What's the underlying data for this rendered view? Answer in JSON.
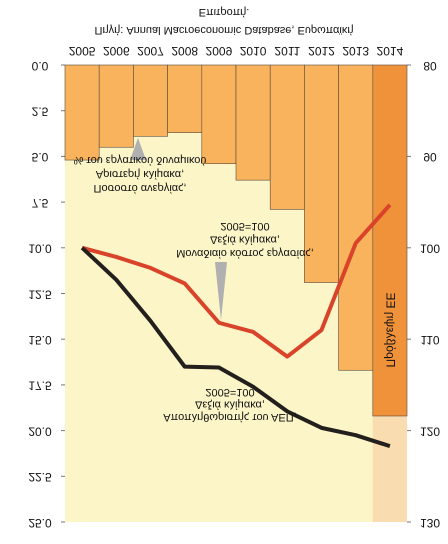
{
  "chart_data": {
    "type": "bar_line",
    "source": [
      "Επιτροπή.",
      "Πηγή: Annual Macroeconomic Database, Ευρωπαϊκή"
    ],
    "categories": [
      "2005",
      "2006",
      "2007",
      "2008",
      "2009",
      "2010",
      "2011",
      "2012",
      "2013",
      "2014"
    ],
    "series": [
      {
        "name": "Ποσοστό ανεργίας",
        "type": "bar",
        "axis": "y",
        "color": "#f8b35c",
        "values": [
          5.2,
          4.5,
          3.9,
          3.7,
          5.4,
          6.3,
          7.9,
          11.9,
          16.7,
          19.2
        ]
      },
      {
        "name": "Μοναδιαίο κόστος εργασίας",
        "type": "line",
        "axis": "y2",
        "color": "#d9432a",
        "values": [
          100,
          101,
          102.2,
          103.9,
          108.2,
          109.2,
          111.9,
          109,
          99.5,
          95.3
        ]
      },
      {
        "name": "Αποπληθωριστής του ΑΕΠ",
        "type": "line",
        "axis": "y2",
        "color": "#231f1c",
        "values": [
          100,
          103.5,
          108,
          113,
          113.1,
          115.2,
          117.9,
          119.7,
          120.5,
          121.7
        ]
      }
    ],
    "forecast_color": "#f0923a",
    "annotations": {
      "unemployment": [
        "Ποσοστό ανεργίας,",
        "Αριστερή κλίμακα,",
        "% του εργατικού δυναμικού"
      ],
      "labor_cost": [
        "Μοναδιαίο κόστος εργασίας,",
        "Δεξιά κλίμακα,",
        "2005=100"
      ],
      "deflator": [
        "Αποπληθωριστής του ΑΕΠ,",
        "Δεξιά κλίμακα,",
        "2005=100"
      ],
      "forecast": "Πρόβλεψη ΕΕ"
    },
    "ylim": [
      0,
      25
    ],
    "yticks": [
      {
        "value": 0,
        "label": "0.0"
      },
      {
        "value": 2.5,
        "label": "2.5"
      },
      {
        "value": 5,
        "label": "5.0"
      },
      {
        "value": 7.5,
        "label": "7.5"
      },
      {
        "value": 10,
        "label": "10.0"
      },
      {
        "value": 12.5,
        "label": "12.5"
      },
      {
        "value": 15,
        "label": "15.0"
      },
      {
        "value": 17.5,
        "label": "17.5"
      },
      {
        "value": 20,
        "label": "20.0"
      },
      {
        "value": 22.5,
        "label": "22.5"
      },
      {
        "value": 25,
        "label": "25.0"
      }
    ],
    "y2lim": [
      80,
      130
    ],
    "y2ticks": [
      80,
      90,
      100,
      110,
      120,
      130
    ]
  }
}
